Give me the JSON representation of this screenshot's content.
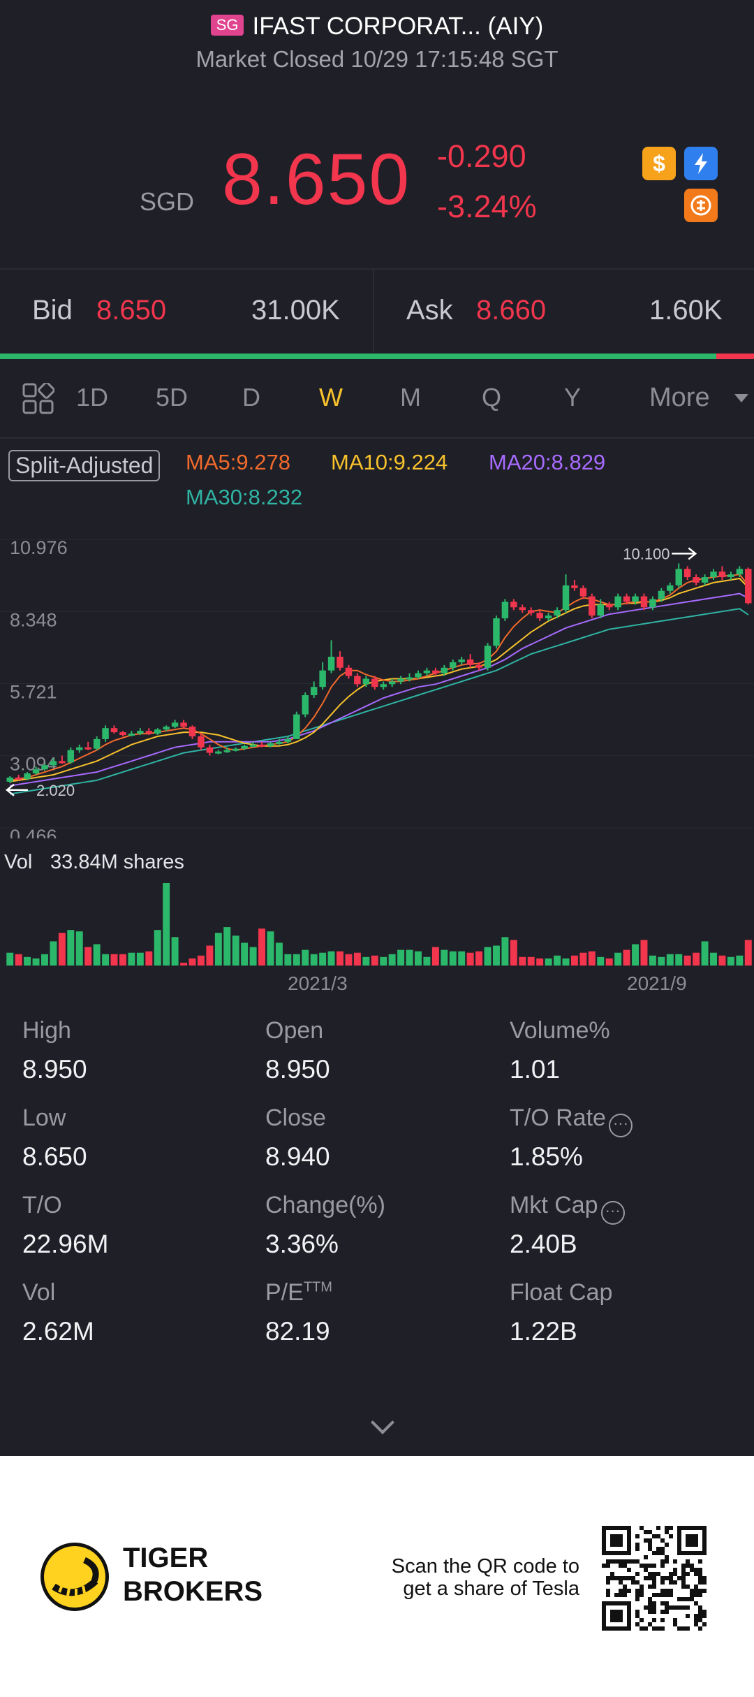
{
  "header": {
    "exchange_badge": "SG",
    "title": "IFAST CORPORAT... (AIY)",
    "status": "Market Closed 10/29 17:15:48 SGT"
  },
  "quote": {
    "currency": "SGD",
    "last": "8.650",
    "change": "-0.290",
    "change_pct": "-3.24%",
    "icons": [
      "dollar-icon",
      "flash-icon",
      "coin-icon"
    ],
    "down_color": "#f2364d",
    "up_color": "#2cb86b"
  },
  "bidask": {
    "bid_label": "Bid",
    "bid_price": "8.650",
    "bid_size": "31.00K",
    "ask_label": "Ask",
    "ask_price": "8.660",
    "ask_size": "1.60K",
    "bid_ratio": 0.95
  },
  "tabs": {
    "items": [
      "1D",
      "5D",
      "D",
      "W",
      "M",
      "Q",
      "Y"
    ],
    "active": "W",
    "more": "More"
  },
  "legend": {
    "adjust": "Split-Adjusted",
    "ma5": "MA5:9.278",
    "ma10": "MA10:9.224",
    "ma20": "MA20:8.829",
    "ma30": "MA30:8.232"
  },
  "chart_data": {
    "type": "candlestick",
    "y_ticks": [
      "10.976",
      "8.348",
      "5.721",
      "3.094",
      "0.466"
    ],
    "ylim": [
      0.466,
      10.976
    ],
    "high_marker": "10.100",
    "low_marker": "2.020",
    "x_labels": [
      "2021/3",
      "2021/9"
    ],
    "candles": [
      [
        2.15,
        2.3,
        2.1,
        2.35
      ],
      [
        2.3,
        2.25,
        2.2,
        2.4
      ],
      [
        2.25,
        2.45,
        2.2,
        2.5
      ],
      [
        2.45,
        2.6,
        2.4,
        2.7
      ],
      [
        2.6,
        2.75,
        2.55,
        2.8
      ],
      [
        2.75,
        2.9,
        2.7,
        3.0
      ],
      [
        2.9,
        2.85,
        2.8,
        3.1
      ],
      [
        2.85,
        3.3,
        2.8,
        3.4
      ],
      [
        3.3,
        3.4,
        3.2,
        3.5
      ],
      [
        3.4,
        3.35,
        3.3,
        3.6
      ],
      [
        3.35,
        3.7,
        3.3,
        3.8
      ],
      [
        3.7,
        4.1,
        3.6,
        4.2
      ],
      [
        4.1,
        3.95,
        3.9,
        4.2
      ],
      [
        3.95,
        3.85,
        3.8,
        4.0
      ],
      [
        3.85,
        3.9,
        3.8,
        4.0
      ],
      [
        3.9,
        4.0,
        3.85,
        4.1
      ],
      [
        4.0,
        3.9,
        3.85,
        4.1
      ],
      [
        3.9,
        4.05,
        3.85,
        4.1
      ],
      [
        4.05,
        4.15,
        4.0,
        4.2
      ],
      [
        4.15,
        4.3,
        4.1,
        4.4
      ],
      [
        4.3,
        4.15,
        4.1,
        4.4
      ],
      [
        4.15,
        3.8,
        3.7,
        4.2
      ],
      [
        3.8,
        3.4,
        3.3,
        3.9
      ],
      [
        3.4,
        3.2,
        3.1,
        3.5
      ],
      [
        3.2,
        3.25,
        3.15,
        3.3
      ],
      [
        3.25,
        3.3,
        3.2,
        3.4
      ],
      [
        3.3,
        3.35,
        3.25,
        3.4
      ],
      [
        3.35,
        3.45,
        3.3,
        3.5
      ],
      [
        3.45,
        3.5,
        3.4,
        3.6
      ],
      [
        3.5,
        3.45,
        3.4,
        3.6
      ],
      [
        3.45,
        3.55,
        3.4,
        3.6
      ],
      [
        3.55,
        3.6,
        3.5,
        3.7
      ],
      [
        3.6,
        3.7,
        3.55,
        3.8
      ],
      [
        3.7,
        4.6,
        3.7,
        4.7
      ],
      [
        4.6,
        5.3,
        4.5,
        5.4
      ],
      [
        5.3,
        5.6,
        5.2,
        5.8
      ],
      [
        5.6,
        6.2,
        5.5,
        6.5
      ],
      [
        6.2,
        6.7,
        6.1,
        7.3
      ],
      [
        6.7,
        6.3,
        6.2,
        6.9
      ],
      [
        6.3,
        6.0,
        5.9,
        6.4
      ],
      [
        6.0,
        5.7,
        5.6,
        6.1
      ],
      [
        5.7,
        5.9,
        5.6,
        6.0
      ],
      [
        5.9,
        5.6,
        5.5,
        6.0
      ],
      [
        5.6,
        5.7,
        5.5,
        5.8
      ],
      [
        5.7,
        5.8,
        5.6,
        5.9
      ],
      [
        5.8,
        5.9,
        5.7,
        6.0
      ],
      [
        5.9,
        5.95,
        5.8,
        6.1
      ],
      [
        5.95,
        6.1,
        5.9,
        6.2
      ],
      [
        6.1,
        6.2,
        6.0,
        6.3
      ],
      [
        6.2,
        6.1,
        6.0,
        6.3
      ],
      [
        6.1,
        6.3,
        6.0,
        6.4
      ],
      [
        6.3,
        6.5,
        6.2,
        6.6
      ],
      [
        6.5,
        6.6,
        6.4,
        6.7
      ],
      [
        6.6,
        6.4,
        6.3,
        6.8
      ],
      [
        6.4,
        6.3,
        6.2,
        6.5
      ],
      [
        6.3,
        7.1,
        6.2,
        7.2
      ],
      [
        7.1,
        8.1,
        7.0,
        8.2
      ],
      [
        8.1,
        8.7,
        8.0,
        8.8
      ],
      [
        8.7,
        8.5,
        8.4,
        8.8
      ],
      [
        8.5,
        8.4,
        8.3,
        8.6
      ],
      [
        8.4,
        8.3,
        8.2,
        8.5
      ],
      [
        8.3,
        8.1,
        8.0,
        8.4
      ],
      [
        8.1,
        8.2,
        8.0,
        8.3
      ],
      [
        8.2,
        8.4,
        8.1,
        8.5
      ],
      [
        8.4,
        9.3,
        8.3,
        9.7
      ],
      [
        9.3,
        9.2,
        9.1,
        9.5
      ],
      [
        9.2,
        8.9,
        8.8,
        9.3
      ],
      [
        8.9,
        8.2,
        8.1,
        9.0
      ],
      [
        8.2,
        8.6,
        8.1,
        8.8
      ],
      [
        8.6,
        8.5,
        8.4,
        8.7
      ],
      [
        8.5,
        8.9,
        8.4,
        9.0
      ],
      [
        8.9,
        8.7,
        8.6,
        9.0
      ],
      [
        8.7,
        8.9,
        8.6,
        9.0
      ],
      [
        8.9,
        8.5,
        8.4,
        9.0
      ],
      [
        8.5,
        8.8,
        8.4,
        8.9
      ],
      [
        8.8,
        9.1,
        8.7,
        9.2
      ],
      [
        9.1,
        9.3,
        9.0,
        9.4
      ],
      [
        9.3,
        9.9,
        9.2,
        10.1
      ],
      [
        9.9,
        9.6,
        9.5,
        10.0
      ],
      [
        9.6,
        9.4,
        9.3,
        9.7
      ],
      [
        9.4,
        9.6,
        9.3,
        9.7
      ],
      [
        9.6,
        9.8,
        9.5,
        9.9
      ],
      [
        9.8,
        9.6,
        9.5,
        10.0
      ],
      [
        9.6,
        9.7,
        9.5,
        9.8
      ],
      [
        9.7,
        9.9,
        9.6,
        10.0
      ],
      [
        9.9,
        8.65,
        8.6,
        9.95
      ]
    ],
    "ma5": [
      2.2,
      2.25,
      2.3,
      2.4,
      2.5,
      2.6,
      2.7,
      2.85,
      3.0,
      3.15,
      3.3,
      3.5,
      3.65,
      3.75,
      3.85,
      3.9,
      3.9,
      3.95,
      4.0,
      4.05,
      4.1,
      4.05,
      3.9,
      3.7,
      3.5,
      3.35,
      3.3,
      3.35,
      3.4,
      3.45,
      3.5,
      3.55,
      3.6,
      3.8,
      4.1,
      4.5,
      5.0,
      5.6,
      6.0,
      6.2,
      6.2,
      6.05,
      5.95,
      5.85,
      5.8,
      5.8,
      5.85,
      5.9,
      6.0,
      6.1,
      6.2,
      6.3,
      6.4,
      6.45,
      6.45,
      6.6,
      6.9,
      7.4,
      7.8,
      8.1,
      8.35,
      8.4,
      8.35,
      8.3,
      8.5,
      8.7,
      8.85,
      8.8,
      8.7,
      8.6,
      8.6,
      8.65,
      8.7,
      8.7,
      8.7,
      8.8,
      8.95,
      9.2,
      9.4,
      9.5,
      9.55,
      9.6,
      9.65,
      9.65,
      9.7,
      9.3
    ],
    "ma10": [
      2.15,
      2.2,
      2.25,
      2.3,
      2.35,
      2.4,
      2.5,
      2.6,
      2.7,
      2.8,
      2.9,
      3.05,
      3.2,
      3.35,
      3.5,
      3.6,
      3.7,
      3.8,
      3.85,
      3.9,
      3.95,
      3.95,
      3.95,
      3.9,
      3.85,
      3.75,
      3.65,
      3.55,
      3.5,
      3.45,
      3.45,
      3.45,
      3.5,
      3.6,
      3.75,
      3.95,
      4.25,
      4.6,
      4.95,
      5.25,
      5.5,
      5.7,
      5.8,
      5.85,
      5.9,
      5.9,
      5.9,
      5.9,
      5.95,
      6.0,
      6.05,
      6.15,
      6.25,
      6.3,
      6.35,
      6.45,
      6.6,
      6.85,
      7.1,
      7.35,
      7.6,
      7.8,
      8.0,
      8.15,
      8.3,
      8.45,
      8.55,
      8.6,
      8.6,
      8.6,
      8.6,
      8.65,
      8.65,
      8.7,
      8.7,
      8.75,
      8.85,
      9.0,
      9.1,
      9.2,
      9.3,
      9.4,
      9.45,
      9.5,
      9.55,
      9.22
    ],
    "ma20": [
      2.0,
      2.05,
      2.1,
      2.15,
      2.2,
      2.25,
      2.3,
      2.35,
      2.4,
      2.45,
      2.5,
      2.6,
      2.7,
      2.8,
      2.9,
      3.0,
      3.1,
      3.2,
      3.3,
      3.4,
      3.45,
      3.5,
      3.55,
      3.6,
      3.6,
      3.6,
      3.6,
      3.6,
      3.6,
      3.6,
      3.6,
      3.65,
      3.7,
      3.8,
      3.9,
      4.0,
      4.15,
      4.3,
      4.45,
      4.6,
      4.75,
      4.9,
      5.05,
      5.2,
      5.3,
      5.4,
      5.5,
      5.6,
      5.65,
      5.7,
      5.8,
      5.9,
      6.0,
      6.1,
      6.2,
      6.3,
      6.45,
      6.6,
      6.8,
      7.0,
      7.15,
      7.3,
      7.45,
      7.6,
      7.75,
      7.85,
      7.95,
      8.05,
      8.15,
      8.25,
      8.3,
      8.35,
      8.4,
      8.45,
      8.5,
      8.55,
      8.6,
      8.65,
      8.7,
      8.75,
      8.8,
      8.85,
      8.9,
      8.95,
      9.0,
      8.83
    ],
    "ma30": [
      1.7,
      1.75,
      1.8,
      1.85,
      1.9,
      1.95,
      2.0,
      2.05,
      2.1,
      2.15,
      2.2,
      2.3,
      2.4,
      2.5,
      2.6,
      2.7,
      2.8,
      2.9,
      3.0,
      3.1,
      3.2,
      3.25,
      3.3,
      3.35,
      3.4,
      3.45,
      3.5,
      3.55,
      3.6,
      3.65,
      3.7,
      3.75,
      3.8,
      3.9,
      4.0,
      4.1,
      4.2,
      4.3,
      4.4,
      4.5,
      4.6,
      4.7,
      4.8,
      4.9,
      5.0,
      5.1,
      5.2,
      5.3,
      5.4,
      5.5,
      5.6,
      5.7,
      5.8,
      5.9,
      6.0,
      6.1,
      6.2,
      6.35,
      6.5,
      6.65,
      6.8,
      6.9,
      7.0,
      7.1,
      7.2,
      7.3,
      7.4,
      7.5,
      7.6,
      7.7,
      7.75,
      7.8,
      7.85,
      7.9,
      7.95,
      8.0,
      8.05,
      8.1,
      8.15,
      8.2,
      8.25,
      8.3,
      8.35,
      8.4,
      8.45,
      8.23
    ],
    "volume": [
      0.9,
      0.8,
      0.6,
      0.5,
      0.8,
      1.7,
      2.3,
      2.5,
      2.4,
      1.3,
      1.5,
      0.8,
      0.8,
      0.8,
      0.9,
      0.9,
      1.0,
      2.5,
      5.8,
      2.0,
      0.2,
      0.5,
      0.7,
      1.4,
      2.3,
      2.7,
      2.1,
      1.6,
      1.3,
      2.6,
      2.4,
      1.6,
      0.8,
      0.8,
      1.1,
      0.8,
      0.9,
      1.0,
      1.0,
      0.8,
      0.9,
      0.6,
      0.7,
      0.6,
      0.8,
      1.1,
      1.1,
      1.0,
      0.6,
      1.3,
      1.1,
      1.0,
      1.0,
      0.9,
      1.0,
      1.3,
      1.4,
      2.0,
      1.8,
      0.6,
      0.6,
      0.5,
      0.5,
      0.7,
      0.5,
      0.7,
      0.9,
      1.0,
      0.6,
      0.5,
      0.9,
      1.1,
      1.5,
      1.8,
      0.7,
      0.6,
      0.8,
      0.8,
      0.7,
      0.9,
      1.7,
      0.9,
      0.7,
      0.6,
      0.7,
      1.8
    ],
    "volume_label": "Vol",
    "volume_value": "33.84M shares"
  },
  "stats": [
    {
      "label": "High",
      "value": "8.950"
    },
    {
      "label": "Open",
      "value": "8.950"
    },
    {
      "label": "Volume%",
      "value": "1.01"
    },
    {
      "label": "Low",
      "value": "8.650"
    },
    {
      "label": "Close",
      "value": "8.940"
    },
    {
      "label": "T/O Rate",
      "value": "1.85%",
      "info": true
    },
    {
      "label": "T/O",
      "value": "22.96M"
    },
    {
      "label": "Change(%)",
      "value": "3.36%"
    },
    {
      "label": "Mkt Cap",
      "value": "2.40B",
      "info": true
    },
    {
      "label": "Vol",
      "value": "2.62M"
    },
    {
      "label": "P/E",
      "label_sup": "TTM",
      "value": "82.19"
    },
    {
      "label": "Float Cap",
      "value": "1.22B"
    }
  ],
  "footer": {
    "brand_line1": "TIGER",
    "brand_line2": "BROKERS",
    "scan_line1": "Scan the QR code to",
    "scan_line2": "get a share of Tesla"
  }
}
